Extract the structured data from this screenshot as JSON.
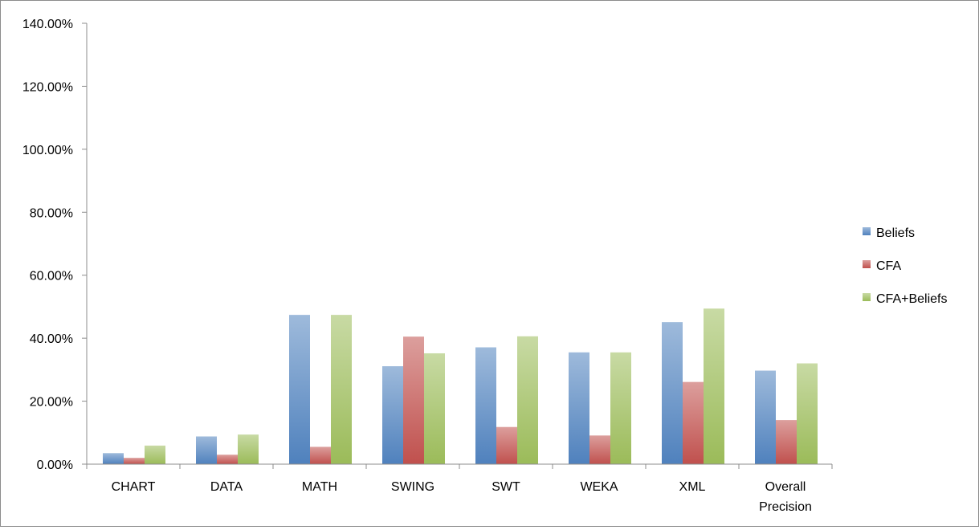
{
  "chart_data": {
    "type": "bar",
    "title": "",
    "xlabel": "",
    "ylabel": "",
    "ylim": [
      0,
      1.4
    ],
    "yticks": [
      {
        "value": 0.0,
        "label": "0.00%"
      },
      {
        "value": 0.2,
        "label": "20.00%"
      },
      {
        "value": 0.4,
        "label": "40.00%"
      },
      {
        "value": 0.6,
        "label": "60.00%"
      },
      {
        "value": 0.8,
        "label": "80.00%"
      },
      {
        "value": 1.0,
        "label": "100.00%"
      },
      {
        "value": 1.2,
        "label": "120.00%"
      },
      {
        "value": 1.4,
        "label": "140.00%"
      }
    ],
    "categories": [
      [
        "CHART"
      ],
      [
        "DATA"
      ],
      [
        "MATH"
      ],
      [
        "SWING"
      ],
      [
        "SWT"
      ],
      [
        "WEKA"
      ],
      [
        "XML"
      ],
      [
        "Overall",
        "Precision"
      ]
    ],
    "series": [
      {
        "name": "Beliefs",
        "color": "#4f81bd",
        "values": [
          0.035,
          0.088,
          0.474,
          0.311,
          0.371,
          0.355,
          0.451,
          0.297
        ]
      },
      {
        "name": "CFA",
        "color": "#c0504d",
        "values": [
          0.02,
          0.03,
          0.055,
          0.405,
          0.118,
          0.091,
          0.261,
          0.14
        ]
      },
      {
        "name": "CFA+Beliefs",
        "color": "#9bbb59",
        "values": [
          0.059,
          0.094,
          0.474,
          0.352,
          0.406,
          0.355,
          0.494,
          0.32
        ]
      }
    ],
    "legend_position": "right",
    "grid": false
  }
}
